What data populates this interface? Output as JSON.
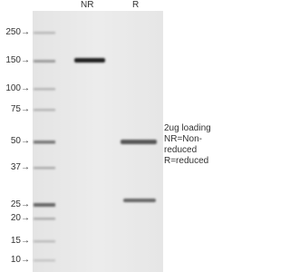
{
  "lanes": [
    "NR",
    "R"
  ],
  "markers": [
    "250→",
    "150→",
    "100→",
    "75→",
    "50→",
    "37→",
    "25→",
    "20→",
    "15→",
    "10→"
  ],
  "annotation": [
    "2ug loading",
    "NR=Non-",
    "reduced",
    "R=reduced"
  ]
}
